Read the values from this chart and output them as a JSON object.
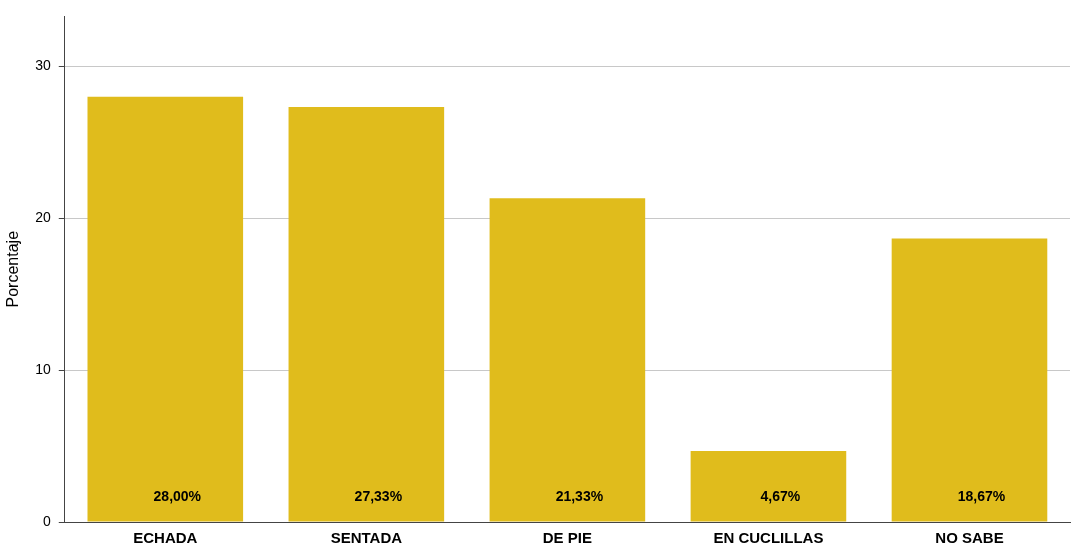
{
  "chart_data": {
    "type": "bar",
    "ylabel": "Porcentaje",
    "categories": [
      "ECHADA",
      "SENTADA",
      "DE PIE",
      "EN CUCLILLAS",
      "NO SABE"
    ],
    "values": [
      28.0,
      27.33,
      21.33,
      4.67,
      18.67
    ],
    "value_labels": [
      "28,00%",
      "27,33%",
      "21,33%",
      "4,67%",
      "18,67%"
    ],
    "color": "#e0bc1c",
    "ylim": [
      0,
      33.3
    ],
    "yticks": [
      0,
      10,
      20,
      30
    ],
    "grid": "y",
    "legend": false
  }
}
